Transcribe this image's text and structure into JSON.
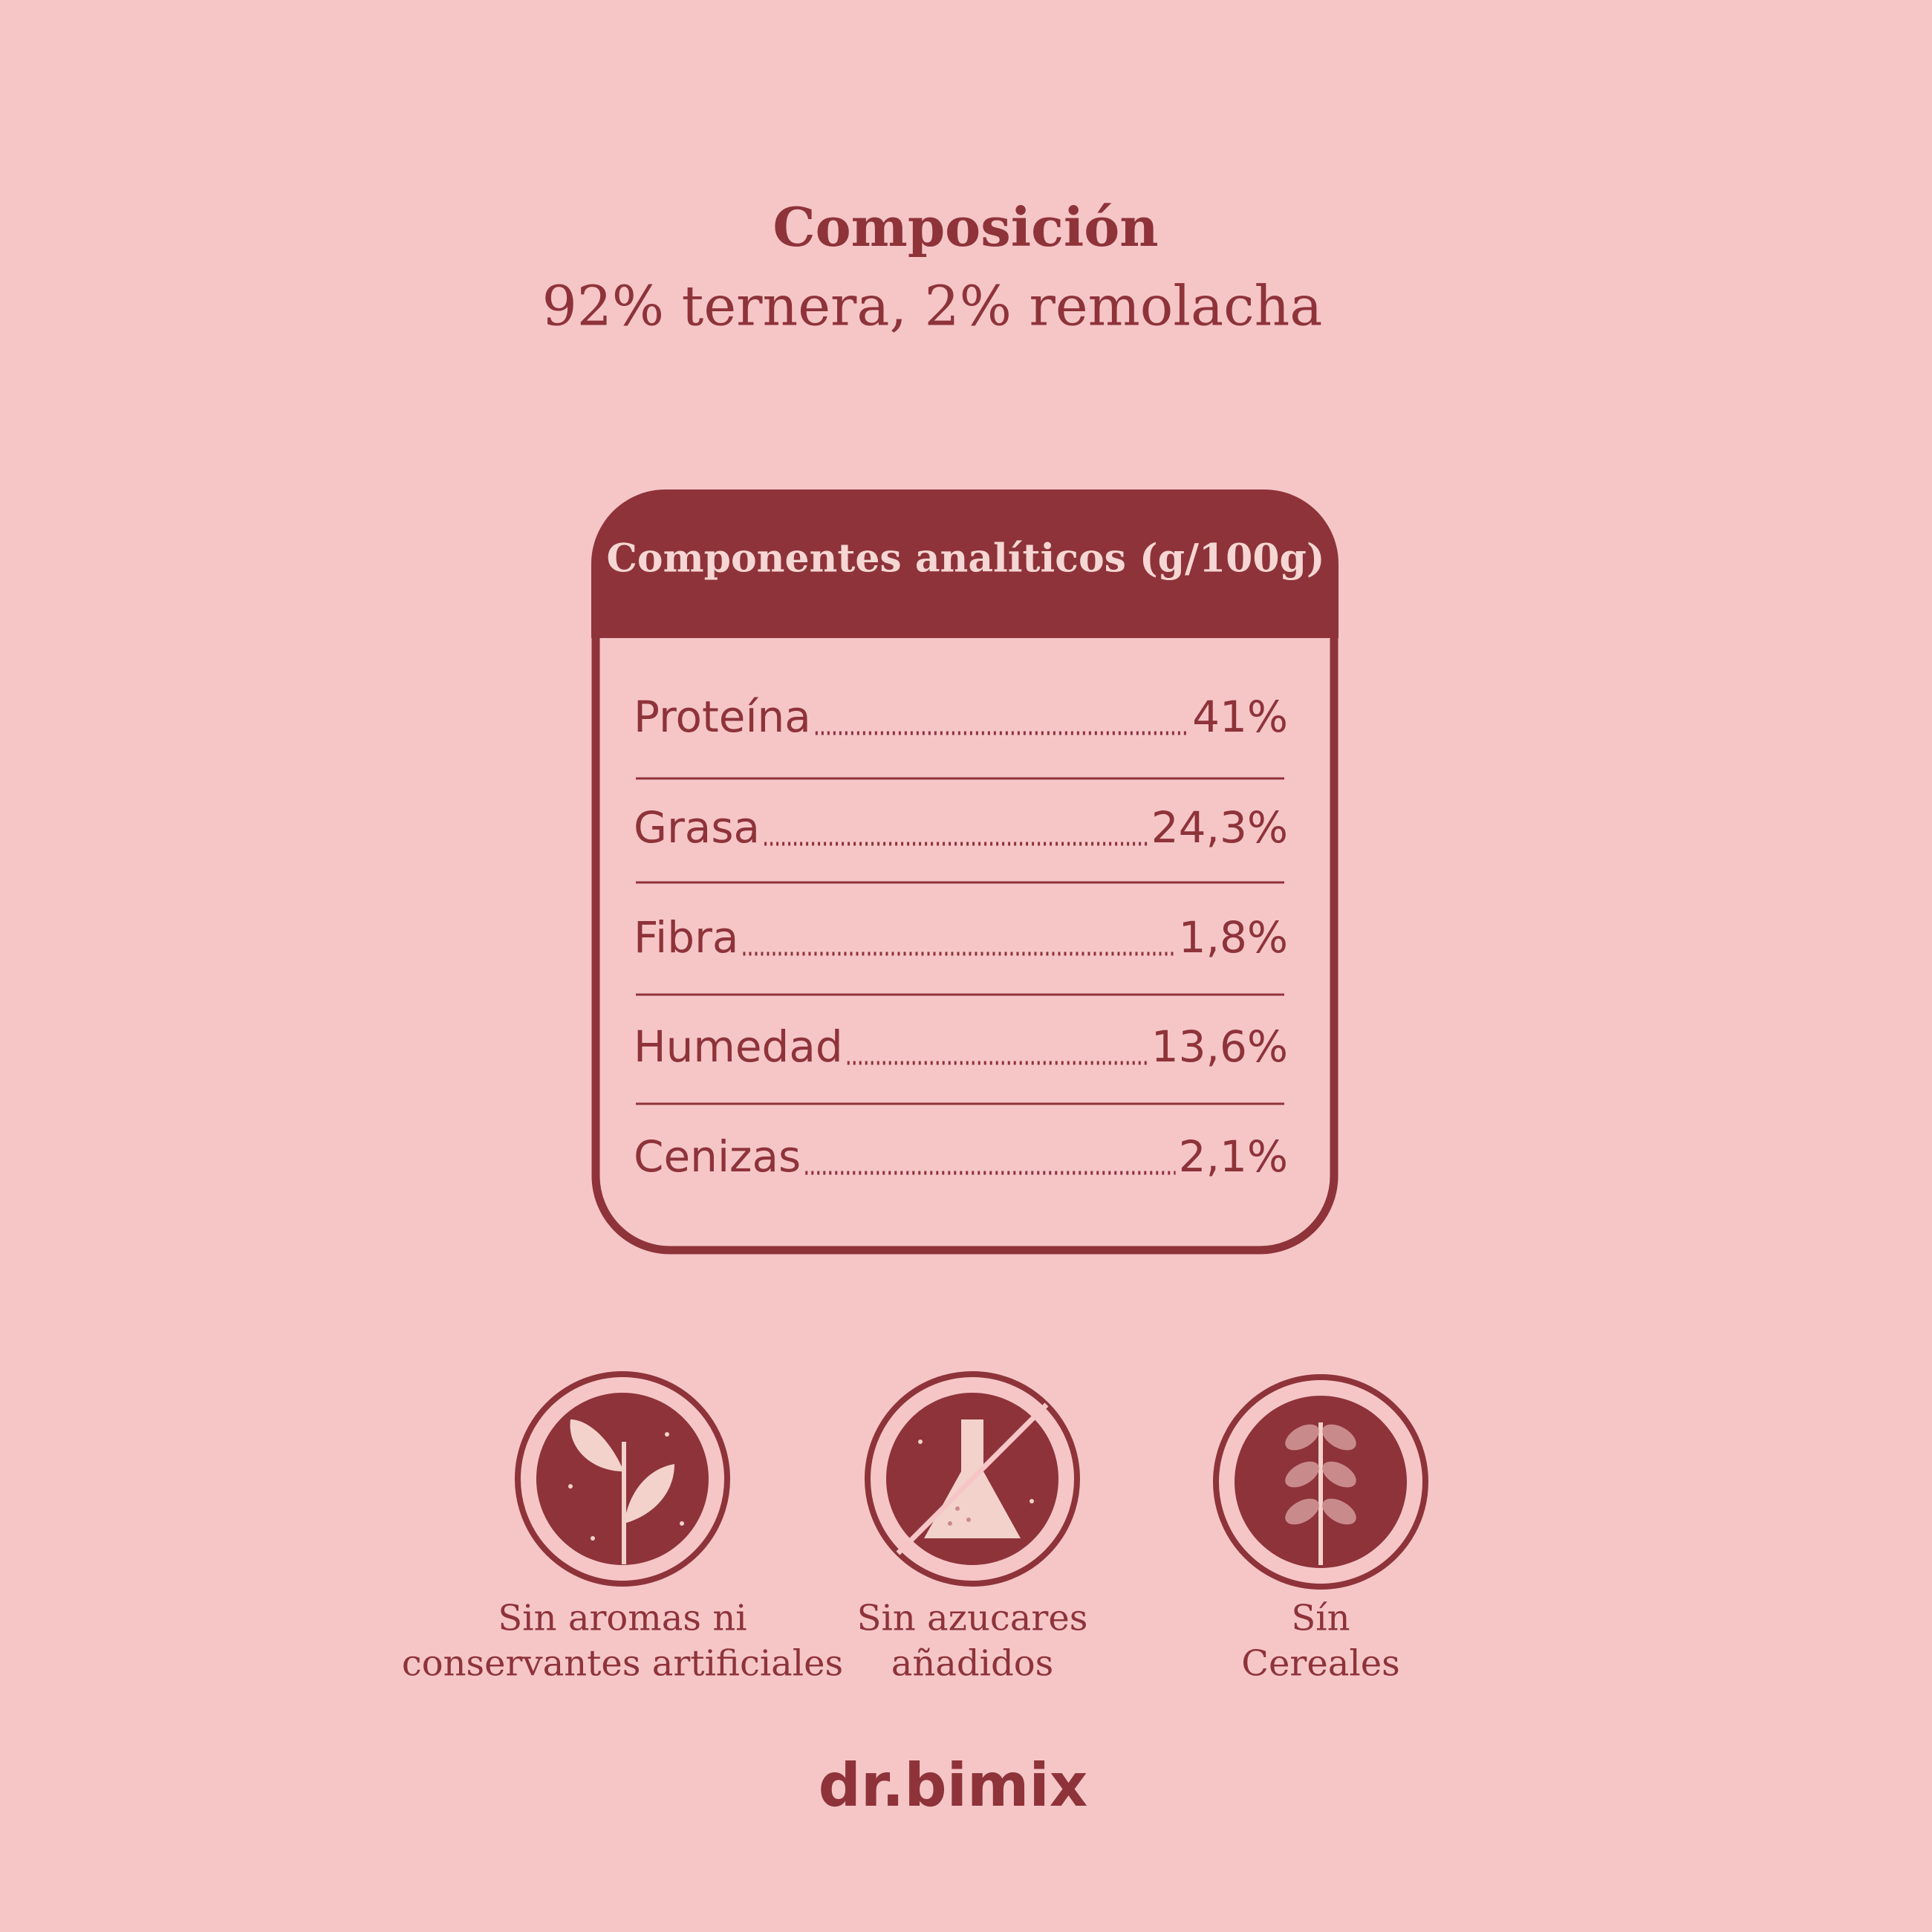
{
  "header": {
    "title": "Composición",
    "subtitle": "92% ternera, 2% remolacha"
  },
  "table": {
    "title": "Componentes analíticos (g/100g)",
    "rows": [
      [
        "Proteína",
        "41%"
      ],
      [
        "Grasa",
        "24,3%"
      ],
      [
        "Fibra",
        "1,8%"
      ],
      [
        "Humedad",
        "13,6%"
      ],
      [
        "Cenizas",
        "2,1%"
      ]
    ]
  },
  "badges": [
    {
      "lines": [
        "Sin aromas ni",
        "conservantes artificiales"
      ]
    },
    {
      "lines": [
        "Sin azucares",
        "añadidos"
      ]
    },
    {
      "lines": [
        "Sín",
        "Cereales"
      ]
    }
  ],
  "brand": "dr.bimix"
}
